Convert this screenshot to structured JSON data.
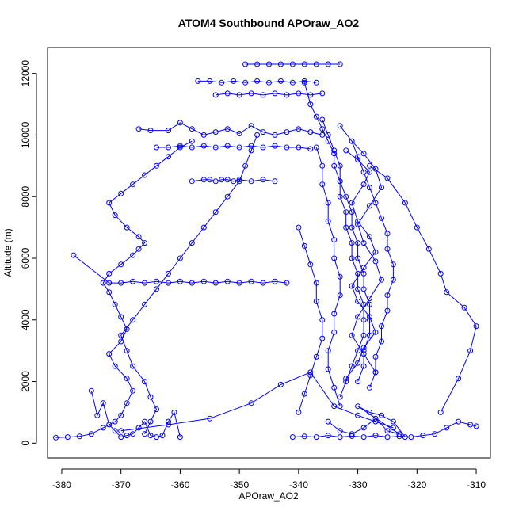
{
  "chart_data": {
    "type": "scatter",
    "title": "ATOM4 Southbound APOraw_AO2",
    "xlabel": "APOraw_AO2",
    "ylabel": "Altitude (m)",
    "xlim": [
      -382.4,
      -307.6
    ],
    "ylim": [
      -480,
      12840
    ],
    "xticks": [
      -380,
      -370,
      -360,
      -350,
      -340,
      -330,
      -320,
      -310
    ],
    "yticks": [
      0,
      2000,
      4000,
      6000,
      8000,
      10000,
      12000
    ],
    "grid": false,
    "legend": "none",
    "series_color": "#0000ff",
    "marker": "open-circle",
    "series": [
      {
        "profile": "left-ascent-outer",
        "x": [
          -381,
          -379,
          -377,
          -375,
          -373,
          -371,
          -370,
          -369,
          -368,
          -369,
          -371,
          -372,
          -370,
          -369,
          -370,
          -371,
          -372,
          -373,
          -372,
          -370,
          -368,
          -367,
          -366,
          -367,
          -369,
          -371,
          -372,
          -370,
          -368,
          -366,
          -364,
          -362,
          -360,
          -358
        ],
        "y": [
          180,
          200,
          220,
          300,
          500,
          700,
          900,
          1300,
          1700,
          2100,
          2500,
          2900,
          3300,
          3700,
          4100,
          4500,
          4900,
          5200,
          5500,
          5800,
          6100,
          6300,
          6500,
          6700,
          7000,
          7400,
          7800,
          8100,
          8400,
          8700,
          9000,
          9300,
          9600,
          9800
        ]
      },
      {
        "profile": "left-ascent-inner",
        "x": [
          -366,
          -365,
          -364,
          -365,
          -366,
          -368,
          -369,
          -370,
          -368,
          -366,
          -364,
          -362,
          -360,
          -358,
          -356,
          -354,
          -352,
          -350,
          -349,
          -348,
          -347
        ],
        "y": [
          300,
          700,
          1100,
          1500,
          2000,
          2500,
          3000,
          3500,
          4000,
          4500,
          5000,
          5500,
          6000,
          6500,
          7000,
          7500,
          8000,
          8500,
          9000,
          9500,
          10000
        ]
      },
      {
        "profile": "left-high-level-leg",
        "x": [
          -364,
          -362,
          -360,
          -358,
          -356,
          -354,
          -352,
          -350,
          -348,
          -346,
          -344,
          -342,
          -340,
          -338
        ],
        "y": [
          9600,
          9600,
          9650,
          9600,
          9650,
          9600,
          9650,
          9600,
          9650,
          9600,
          9650,
          9600,
          9600,
          9550
        ]
      },
      {
        "profile": "left-mid-level-leg",
        "x": [
          -378,
          -372,
          -370,
          -368,
          -366,
          -364,
          -362,
          -360,
          -358,
          -356,
          -354,
          -352,
          -350,
          -348,
          -346,
          -344,
          -342
        ],
        "y": [
          6100,
          5200,
          5200,
          5250,
          5200,
          5250,
          5200,
          5250,
          5200,
          5250,
          5200,
          5250,
          5200,
          5250,
          5200,
          5250,
          5200
        ]
      },
      {
        "profile": "left-leg-8500",
        "x": [
          -358,
          -356,
          -355,
          -354,
          -353,
          -352,
          -351,
          -350,
          -348,
          -346,
          -344
        ],
        "y": [
          8500,
          8550,
          8550,
          8500,
          8550,
          8550,
          8500,
          8550,
          8500,
          8550,
          8500
        ]
      },
      {
        "profile": "top-level-leg",
        "x": [
          -349,
          -347,
          -345,
          -343,
          -341,
          -339,
          -337,
          -335,
          -333
        ],
        "y": [
          12300,
          12300,
          12300,
          12300,
          12300,
          12300,
          12300,
          12300,
          12300
        ]
      },
      {
        "profile": "upper-leg-11700",
        "x": [
          -357,
          -355,
          -353,
          -351,
          -349,
          -347,
          -345,
          -343,
          -341,
          -339,
          -337
        ],
        "y": [
          11750,
          11750,
          11700,
          11750,
          11700,
          11750,
          11700,
          11750,
          11700,
          11750,
          11700
        ]
      },
      {
        "profile": "upper-leg-11300",
        "x": [
          -354,
          -352,
          -350,
          -348,
          -346,
          -344,
          -342,
          -340,
          -338,
          -336
        ],
        "y": [
          11300,
          11350,
          11300,
          11350,
          11300,
          11350,
          11300,
          11350,
          11300,
          11350
        ]
      },
      {
        "profile": "upper-leg-10200",
        "x": [
          -367,
          -365,
          -362,
          -360,
          -358,
          -356,
          -354,
          -352,
          -350,
          -348,
          -346,
          -344,
          -342,
          -340,
          -338,
          -336
        ],
        "y": [
          10200,
          10150,
          10150,
          10400,
          10200,
          10000,
          10100,
          10200,
          10050,
          10300,
          10100,
          10000,
          10100,
          10200,
          10100,
          10000
        ]
      },
      {
        "profile": "left-low-scatter",
        "x": [
          -375,
          -374,
          -373,
          -372,
          -371,
          -370,
          -369,
          -368,
          -367,
          -366,
          -365,
          -364,
          -363,
          -362,
          -361,
          -360
        ],
        "y": [
          1700,
          900,
          1300,
          600,
          400,
          200,
          250,
          300,
          500,
          700,
          250,
          200,
          250,
          700,
          1000,
          200
        ]
      },
      {
        "profile": "cross-leg-low",
        "x": [
          -370,
          -362,
          -355,
          -348,
          -343,
          -338,
          -334,
          -330,
          -327,
          -324
        ],
        "y": [
          400,
          600,
          800,
          1300,
          1900,
          2300,
          1200,
          900,
          700,
          500
        ]
      },
      {
        "profile": "descent-main",
        "x": [
          -339,
          -338,
          -337,
          -336,
          -335,
          -334,
          -334,
          -333,
          -333,
          -332,
          -332,
          -331,
          -331,
          -330,
          -330,
          -329,
          -329,
          -329,
          -330,
          -331,
          -332,
          -333
        ],
        "y": [
          11700,
          11000,
          10600,
          10200,
          9800,
          9400,
          9000,
          8500,
          8000,
          7500,
          7000,
          6500,
          6000,
          5500,
          5000,
          4500,
          4000,
          3500,
          3000,
          2500,
          2000,
          1500
        ]
      },
      {
        "profile": "descent-inner",
        "x": [
          -336,
          -335,
          -334,
          -333,
          -333,
          -332,
          -331,
          -331,
          -330,
          -330,
          -329,
          -329,
          -328,
          -328,
          -328,
          -329,
          -329,
          -330
        ],
        "y": [
          10500,
          10000,
          9500,
          9000,
          8500,
          8000,
          7500,
          7000,
          6500,
          6000,
          5500,
          5000,
          4500,
          4000,
          3500,
          3000,
          2500,
          2000
        ]
      },
      {
        "profile": "descent-right",
        "x": [
          -333,
          -331,
          -330,
          -329,
          -328,
          -327,
          -326,
          -325,
          -325,
          -324,
          -324,
          -325,
          -325,
          -326,
          -326,
          -327,
          -327,
          -328
        ],
        "y": [
          10300,
          9800,
          9300,
          8800,
          8300,
          7800,
          7300,
          6800,
          6300,
          5800,
          5300,
          4800,
          4300,
          3800,
          3300,
          2800,
          2300,
          1800
        ]
      },
      {
        "profile": "descent-left",
        "x": [
          -337,
          -336,
          -336,
          -335,
          -335,
          -334,
          -334,
          -333,
          -333,
          -334,
          -334,
          -335,
          -335,
          -334,
          -333
        ],
        "y": [
          9600,
          9000,
          8400,
          7800,
          7200,
          6600,
          6000,
          5400,
          4800,
          4200,
          3600,
          3000,
          2400,
          1800,
          1200
        ]
      },
      {
        "profile": "descent-far-left",
        "x": [
          -340,
          -339,
          -338,
          -337,
          -337,
          -336,
          -336,
          -337,
          -338,
          -339,
          -340
        ],
        "y": [
          7000,
          6400,
          5800,
          5200,
          4600,
          4000,
          3400,
          2800,
          2200,
          1600,
          1000
        ]
      },
      {
        "profile": "outlier-right",
        "x": [
          -328,
          -325,
          -322,
          -320,
          -318,
          -316,
          -315,
          -312,
          -310,
          -311,
          -313,
          -316
        ],
        "y": [
          9000,
          8600,
          7800,
          7000,
          6300,
          5500,
          4900,
          4400,
          3800,
          3000,
          2100,
          1000
        ]
      },
      {
        "profile": "bottom-level-leg",
        "x": [
          -341,
          -339,
          -337,
          -335,
          -333,
          -331,
          -329,
          -327,
          -325,
          -323,
          -321,
          -319,
          -317,
          -315,
          -313,
          -311,
          -310
        ],
        "y": [
          200,
          220,
          200,
          250,
          200,
          230,
          200,
          250,
          200,
          220,
          200,
          250,
          300,
          500,
          700,
          600,
          550
        ]
      },
      {
        "profile": "mid-cluster-a",
        "x": [
          -332,
          -330,
          -328,
          -329,
          -331,
          -330,
          -328,
          -327,
          -329,
          -331,
          -330,
          -328,
          -327,
          -329,
          -330,
          -332
        ],
        "y": [
          9500,
          9200,
          8800,
          8400,
          7800,
          7200,
          6700,
          6200,
          5700,
          5100,
          4600,
          4100,
          3600,
          3100,
          2600,
          2100
        ]
      },
      {
        "profile": "mid-cluster-b",
        "x": [
          -331,
          -329,
          -327,
          -326,
          -328,
          -330,
          -329,
          -327,
          -326,
          -328,
          -330,
          -331,
          -329,
          -327
        ],
        "y": [
          9800,
          9400,
          8900,
          8300,
          7700,
          7100,
          6500,
          5900,
          5300,
          4700,
          4100,
          3500,
          2900,
          2300
        ]
      },
      {
        "profile": "near-surface",
        "x": [
          -335,
          -333,
          -331,
          -329,
          -327,
          -325,
          -323,
          -330,
          -328,
          -326,
          -324,
          -322
        ],
        "y": [
          700,
          400,
          300,
          500,
          800,
          400,
          300,
          1200,
          1000,
          900,
          700,
          200
        ]
      }
    ]
  }
}
